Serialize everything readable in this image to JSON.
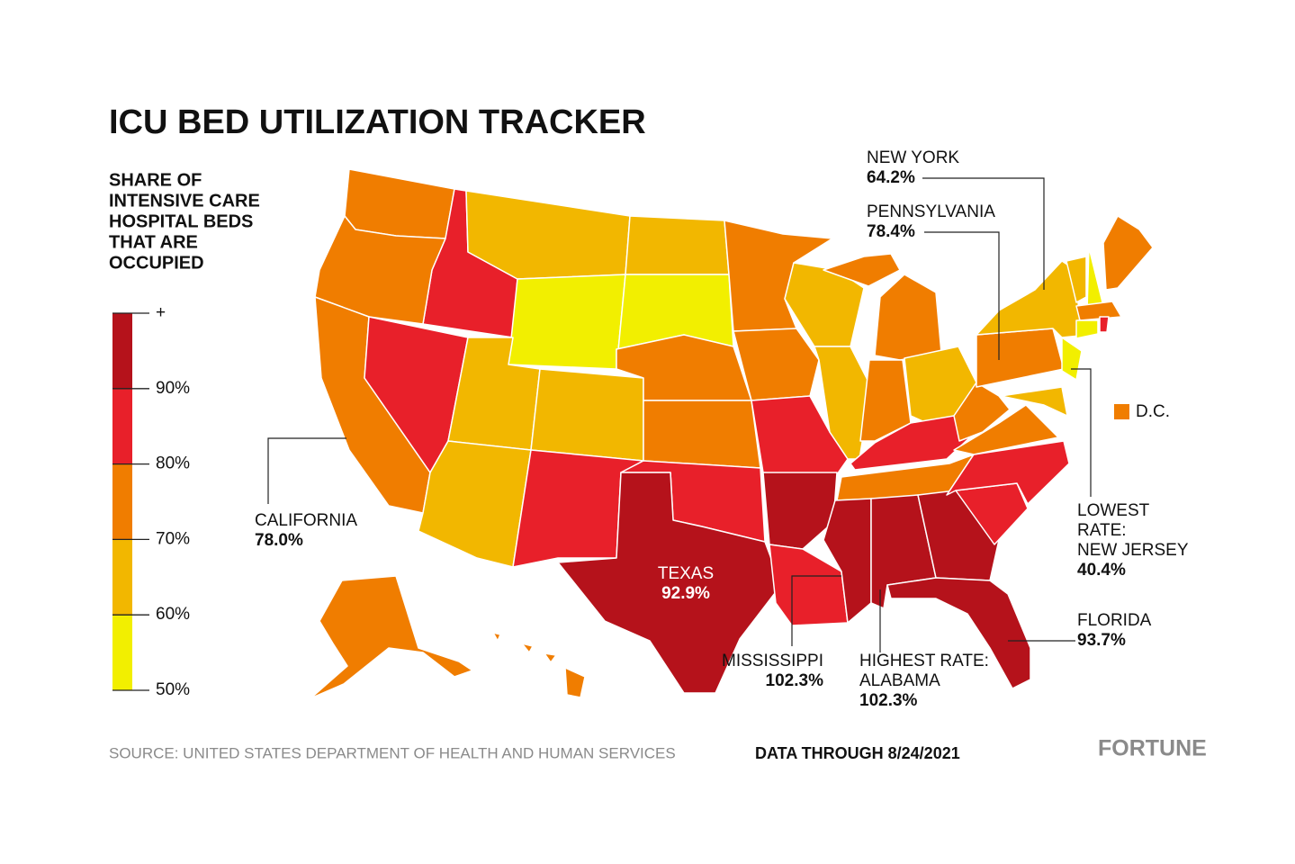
{
  "title": "ICU BED UTILIZATION TRACKER",
  "legend": {
    "title_lines": [
      "SHARE OF",
      "INTENSIVE CARE",
      "HOSPITAL BEDS",
      "THAT ARE",
      "OCCUPIED"
    ],
    "lim": [
      50,
      100
    ],
    "ticks": [
      {
        "value": 50,
        "label": "50%"
      },
      {
        "value": 60,
        "label": "60%"
      },
      {
        "value": 70,
        "label": "70%"
      },
      {
        "value": 80,
        "label": "80%"
      },
      {
        "value": 90,
        "label": "90%"
      },
      {
        "value": 100,
        "label": "+"
      }
    ],
    "colors": [
      "#f2ef00",
      "#f2b700",
      "#f07d00",
      "#e8202a",
      "#b5121b"
    ]
  },
  "annotations": [
    {
      "lines": [
        "NEW YORK"
      ],
      "value": 64.2,
      "value_label": "64.2%"
    },
    {
      "lines": [
        "PENNSYLVANIA"
      ],
      "value": 78.4,
      "value_label": "78.4%"
    },
    {
      "lines": [
        "CALIFORNIA"
      ],
      "value": 78.0,
      "value_label": "78.0%"
    },
    {
      "lines": [
        "TEXAS"
      ],
      "value": 92.9,
      "value_label": "92.9%"
    },
    {
      "lines": [
        "MISSISSIPPI"
      ],
      "value": 102.3,
      "value_label": "102.3%"
    },
    {
      "lines": [
        "HIGHEST RATE:",
        "ALABAMA"
      ],
      "value": 102.3,
      "value_label": "102.3%"
    },
    {
      "lines": [
        "LOWEST",
        "RATE:",
        "NEW JERSEY"
      ],
      "value": 40.4,
      "value_label": "40.4%"
    },
    {
      "lines": [
        "FLORIDA"
      ],
      "value": 93.7,
      "value_label": "93.7%"
    }
  ],
  "dc_label": "D.C.",
  "source": "SOURCE: UNITED STATES DEPARTMENT OF HEALTH AND HUMAN SERVICES",
  "date_note": "DATA THROUGH 8/24/2021",
  "brand": "FORTUNE"
}
